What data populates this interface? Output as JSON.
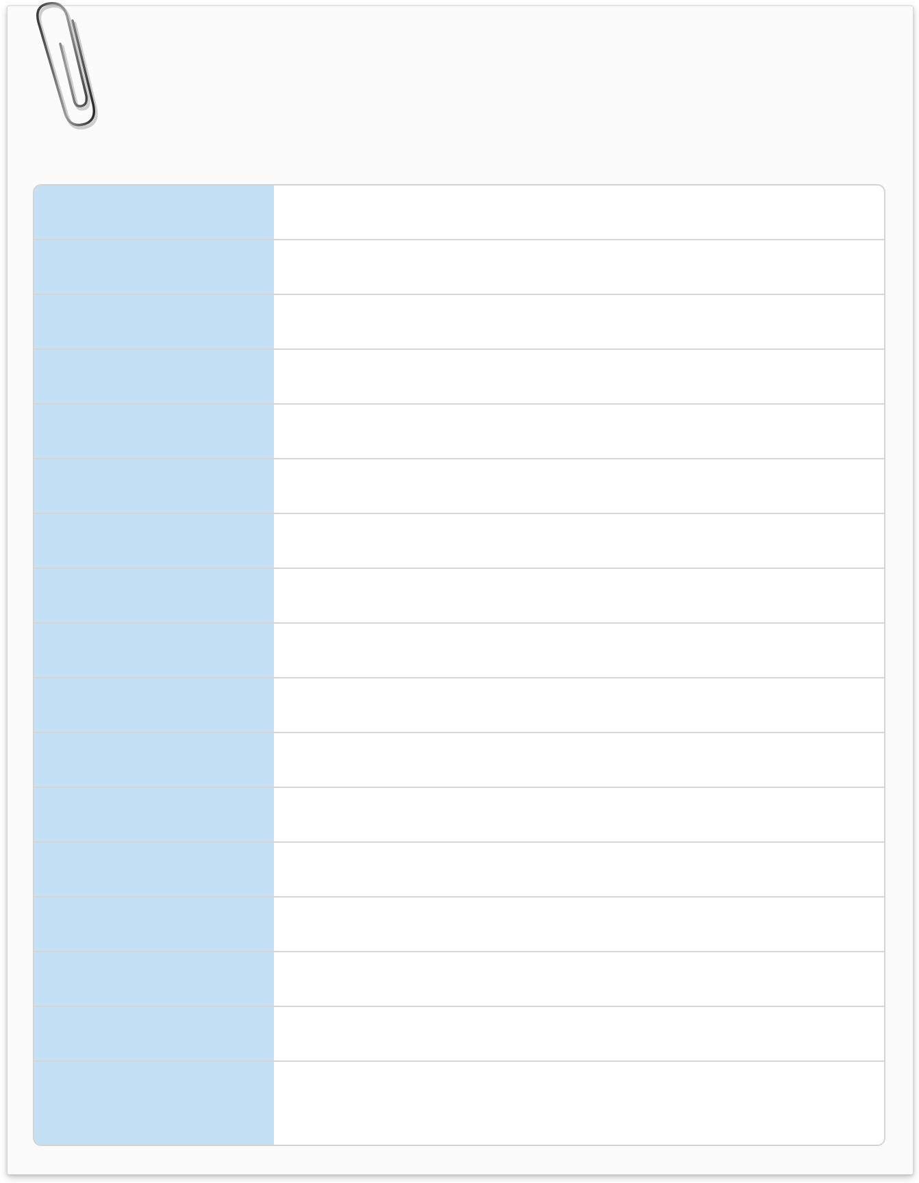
{
  "page": {
    "accent_color": "#c4e0f4",
    "line_color": "#d6d6d6"
  },
  "icons": {
    "clip": "paperclip-icon"
  },
  "table": {
    "rows": [
      {
        "label": "",
        "value": ""
      },
      {
        "label": "",
        "value": ""
      },
      {
        "label": "",
        "value": ""
      },
      {
        "label": "",
        "value": ""
      },
      {
        "label": "",
        "value": ""
      },
      {
        "label": "",
        "value": ""
      },
      {
        "label": "",
        "value": ""
      },
      {
        "label": "",
        "value": ""
      },
      {
        "label": "",
        "value": ""
      },
      {
        "label": "",
        "value": ""
      },
      {
        "label": "",
        "value": ""
      },
      {
        "label": "",
        "value": ""
      },
      {
        "label": "",
        "value": ""
      },
      {
        "label": "",
        "value": ""
      },
      {
        "label": "",
        "value": ""
      },
      {
        "label": "",
        "value": ""
      },
      {
        "label": "",
        "value": ""
      }
    ]
  }
}
